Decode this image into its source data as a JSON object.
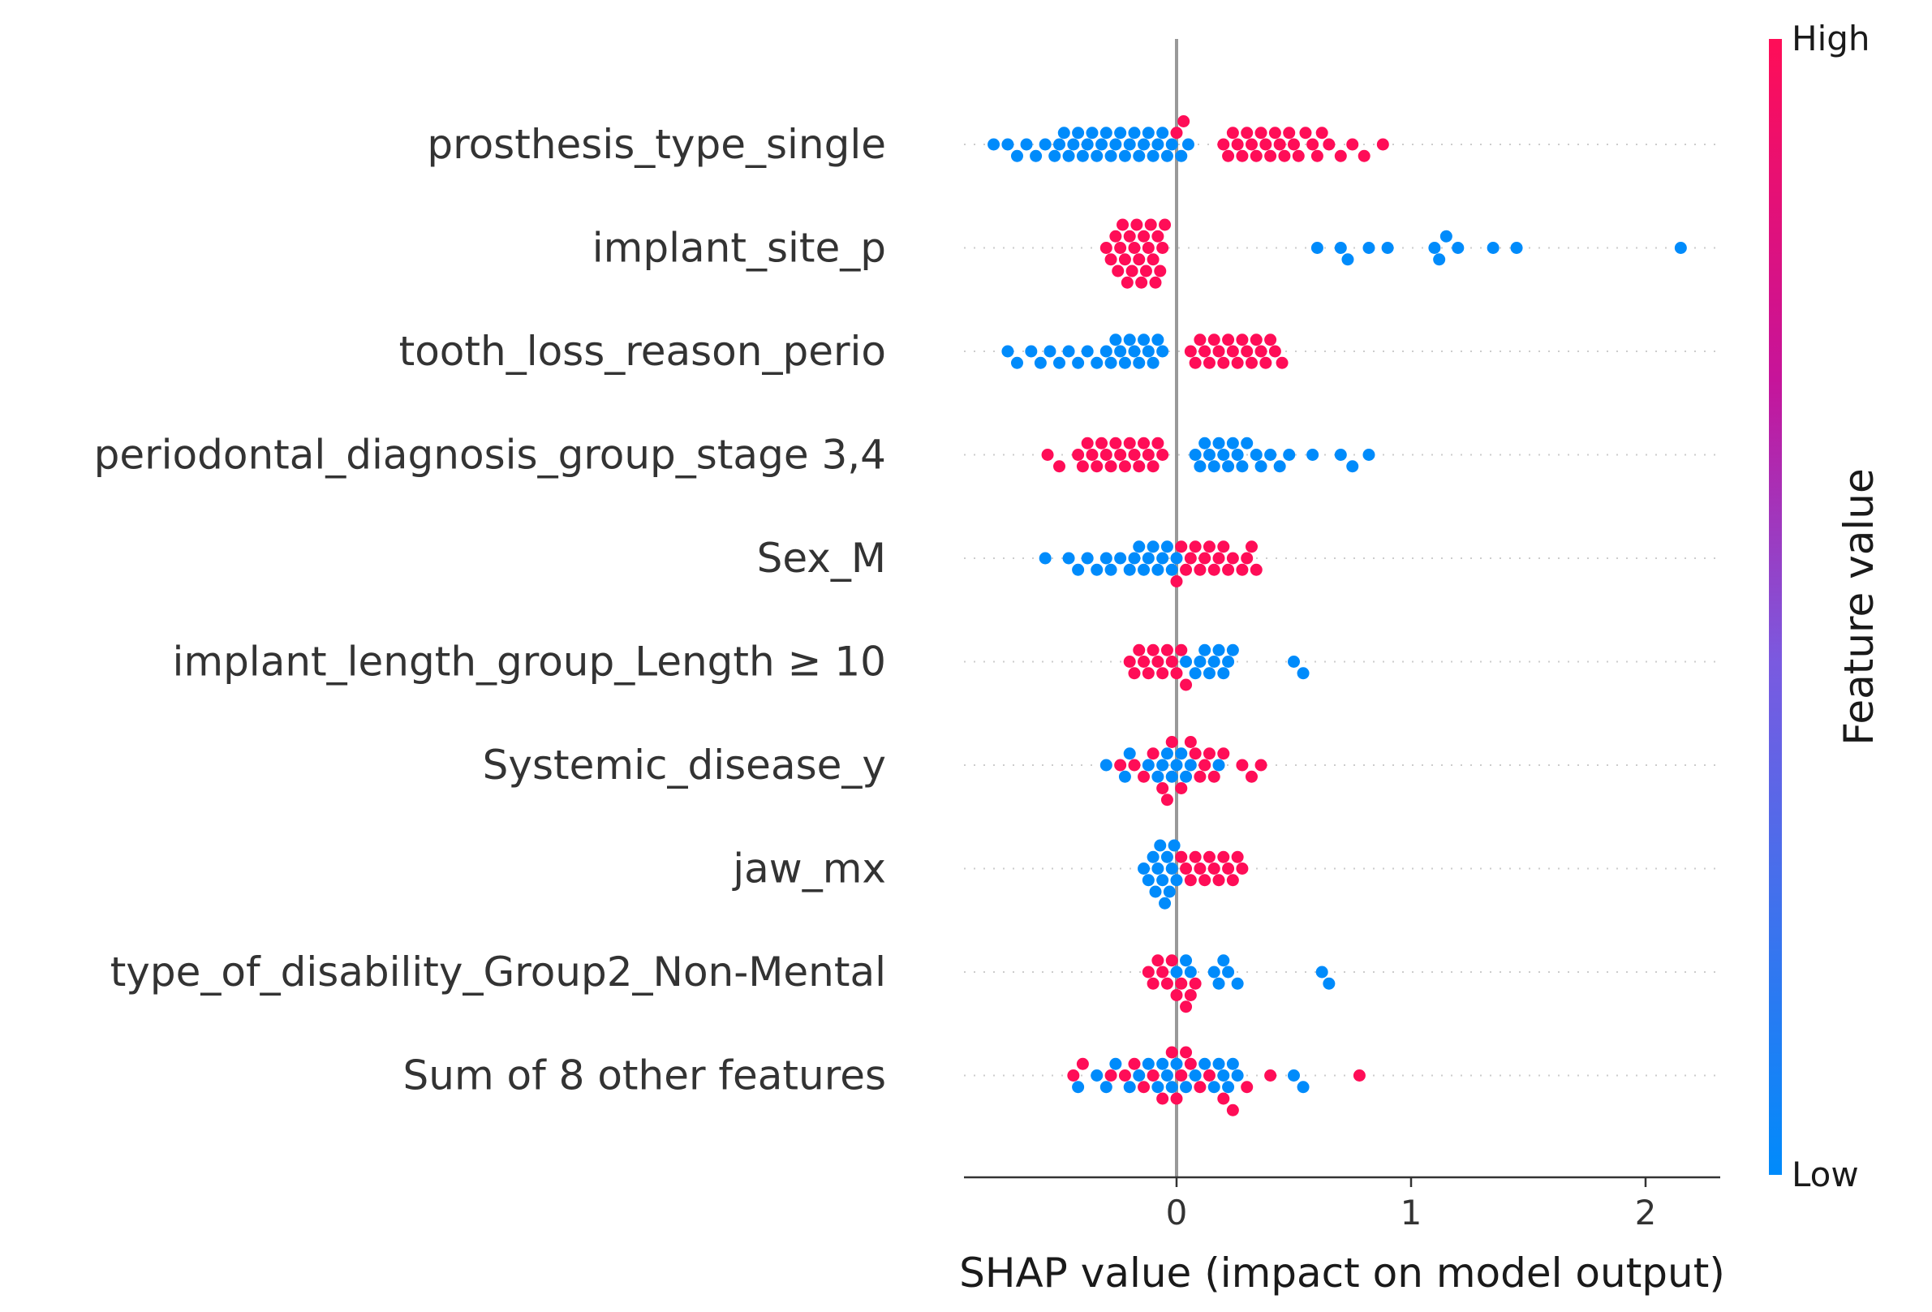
{
  "chart_data": {
    "type": "scatter",
    "subtype": "shap-beeswarm",
    "title": "",
    "xlabel": "SHAP value (impact on model output)",
    "ylabel": "",
    "xlim": [
      -0.92,
      2.3
    ],
    "xticks": [
      0,
      1,
      2
    ],
    "grid": false,
    "zero_line": true,
    "colorbar": {
      "label": "Feature value",
      "high_label": "High",
      "low_label": "Low",
      "high_color": "#ff0d57",
      "low_color": "#008bfb"
    },
    "features": [
      {
        "name": "prosthesis_type_single",
        "low_points": [
          -0.78,
          -0.72,
          -0.68,
          -0.64,
          -0.6,
          -0.56,
          -0.52,
          -0.5,
          -0.48,
          -0.46,
          -0.44,
          -0.42,
          -0.4,
          -0.38,
          -0.36,
          -0.34,
          -0.32,
          -0.3,
          -0.28,
          -0.26,
          -0.24,
          -0.22,
          -0.2,
          -0.18,
          -0.16,
          -0.14,
          -0.12,
          -0.1,
          -0.08,
          -0.06,
          -0.04,
          -0.02,
          0.02,
          0.05
        ],
        "high_points": [
          0.0,
          0.03,
          0.2,
          0.22,
          0.24,
          0.26,
          0.28,
          0.3,
          0.32,
          0.34,
          0.36,
          0.38,
          0.4,
          0.42,
          0.44,
          0.46,
          0.48,
          0.5,
          0.52,
          0.55,
          0.58,
          0.6,
          0.62,
          0.65,
          0.7,
          0.75,
          0.8,
          0.88
        ]
      },
      {
        "name": "implant_site_p",
        "low_points": [
          0.6,
          0.7,
          0.73,
          0.82,
          0.9,
          1.1,
          1.12,
          1.15,
          1.2,
          1.35,
          1.45,
          2.15
        ],
        "high_points": [
          -0.3,
          -0.28,
          -0.26,
          -0.25,
          -0.24,
          -0.23,
          -0.22,
          -0.21,
          -0.2,
          -0.19,
          -0.18,
          -0.17,
          -0.16,
          -0.15,
          -0.14,
          -0.13,
          -0.12,
          -0.11,
          -0.1,
          -0.09,
          -0.08,
          -0.07,
          -0.06,
          -0.05
        ]
      },
      {
        "name": "tooth_loss_reason_perio",
        "low_points": [
          -0.72,
          -0.68,
          -0.62,
          -0.58,
          -0.54,
          -0.5,
          -0.46,
          -0.42,
          -0.38,
          -0.34,
          -0.3,
          -0.28,
          -0.26,
          -0.24,
          -0.22,
          -0.2,
          -0.18,
          -0.16,
          -0.14,
          -0.12,
          -0.1,
          -0.08,
          -0.06
        ],
        "high_points": [
          0.06,
          0.08,
          0.1,
          0.12,
          0.14,
          0.16,
          0.18,
          0.2,
          0.22,
          0.24,
          0.26,
          0.28,
          0.3,
          0.32,
          0.34,
          0.36,
          0.38,
          0.4,
          0.42,
          0.45
        ]
      },
      {
        "name": "periodontal_diagnosis_group_stage 3,4",
        "low_points": [
          0.08,
          0.1,
          0.12,
          0.14,
          0.16,
          0.18,
          0.2,
          0.22,
          0.24,
          0.26,
          0.28,
          0.3,
          0.34,
          0.36,
          0.4,
          0.44,
          0.48,
          0.58,
          0.7,
          0.75,
          0.82
        ],
        "high_points": [
          -0.55,
          -0.5,
          -0.42,
          -0.4,
          -0.38,
          -0.36,
          -0.34,
          -0.32,
          -0.3,
          -0.28,
          -0.26,
          -0.24,
          -0.22,
          -0.2,
          -0.18,
          -0.16,
          -0.14,
          -0.12,
          -0.1,
          -0.08,
          -0.06
        ]
      },
      {
        "name": "Sex_M",
        "low_points": [
          -0.56,
          -0.46,
          -0.42,
          -0.38,
          -0.34,
          -0.3,
          -0.28,
          -0.24,
          -0.2,
          -0.18,
          -0.16,
          -0.14,
          -0.12,
          -0.1,
          -0.08,
          -0.06,
          -0.04,
          -0.02,
          0.0
        ],
        "high_points": [
          0.0,
          0.02,
          0.04,
          0.06,
          0.08,
          0.1,
          0.12,
          0.14,
          0.16,
          0.18,
          0.2,
          0.22,
          0.24,
          0.28,
          0.3,
          0.32,
          0.34
        ]
      },
      {
        "name": "implant_length_group_Length ≥ 10",
        "low_points": [
          0.04,
          0.08,
          0.1,
          0.12,
          0.14,
          0.16,
          0.18,
          0.2,
          0.22,
          0.24,
          0.5,
          0.54
        ],
        "high_points": [
          -0.2,
          -0.18,
          -0.16,
          -0.14,
          -0.12,
          -0.1,
          -0.08,
          -0.06,
          -0.04,
          -0.02,
          0.0,
          0.02,
          0.04
        ]
      },
      {
        "name": "Systemic_disease_y",
        "low_points": [
          -0.3,
          -0.22,
          -0.2,
          -0.12,
          -0.08,
          -0.06,
          -0.04,
          -0.02,
          0.0,
          0.02,
          0.04,
          0.06,
          0.18
        ],
        "high_points": [
          -0.24,
          -0.18,
          -0.14,
          -0.1,
          -0.06,
          -0.04,
          -0.02,
          0.02,
          0.06,
          0.08,
          0.1,
          0.12,
          0.14,
          0.16,
          0.2,
          0.28,
          0.32,
          0.36
        ]
      },
      {
        "name": "jaw_mx",
        "low_points": [
          -0.14,
          -0.12,
          -0.1,
          -0.09,
          -0.08,
          -0.07,
          -0.06,
          -0.05,
          -0.04,
          -0.03,
          -0.02,
          -0.01,
          0.0
        ],
        "high_points": [
          0.02,
          0.04,
          0.06,
          0.08,
          0.1,
          0.12,
          0.14,
          0.16,
          0.18,
          0.2,
          0.22,
          0.24,
          0.26,
          0.28
        ]
      },
      {
        "name": "type_of_disability_Group2_Non-Mental",
        "low_points": [
          0.0,
          0.04,
          0.06,
          0.16,
          0.18,
          0.2,
          0.22,
          0.26,
          0.62,
          0.65
        ],
        "high_points": [
          -0.12,
          -0.1,
          -0.08,
          -0.06,
          -0.04,
          -0.02,
          0.0,
          0.02,
          0.04,
          0.06,
          0.08
        ]
      },
      {
        "name": "Sum of 8 other features",
        "low_points": [
          -0.42,
          -0.34,
          -0.3,
          -0.26,
          -0.2,
          -0.16,
          -0.12,
          -0.08,
          -0.06,
          -0.04,
          -0.02,
          0.0,
          0.04,
          0.08,
          0.12,
          0.16,
          0.18,
          0.2,
          0.22,
          0.24,
          0.26,
          0.5,
          0.54
        ],
        "high_points": [
          -0.44,
          -0.4,
          -0.28,
          -0.22,
          -0.18,
          -0.14,
          -0.1,
          -0.06,
          -0.02,
          0.0,
          0.02,
          0.04,
          0.06,
          0.1,
          0.14,
          0.2,
          0.24,
          0.3,
          0.4,
          0.78
        ]
      }
    ]
  }
}
